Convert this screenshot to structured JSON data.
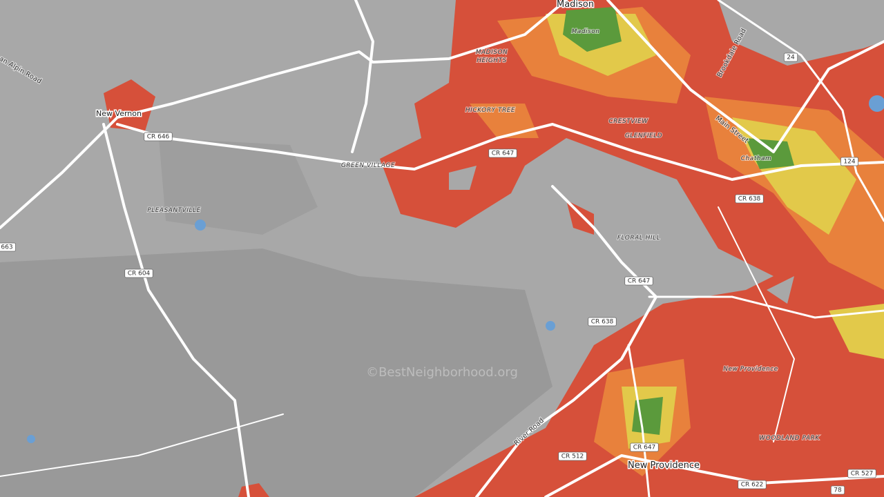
{
  "places": [
    "Madison",
    "Madison",
    "MADISON",
    "HEIGHTS",
    "HICKORY TREE",
    "CRESTVIEW",
    "GLENFIELD",
    "Chatham",
    "FLORAL HILL",
    "New Vernon",
    "GREEN VILLAGE",
    "PLEASANTVILLE",
    "New Providence",
    "WOODLAND PARK",
    "New Providence"
  ],
  "streets": [
    "Brookdale Road",
    "Main Street",
    "an Alpin Road",
    "River Road"
  ],
  "road_shields": [
    "24",
    "124",
    "CR 638",
    "CR 647",
    "CR 638",
    "CR 646",
    "CR 647",
    "663",
    "CR 604",
    "CR 647",
    "CR 512",
    "CR 622",
    "CR 527",
    "78"
  ],
  "watermark": "©BestNeighborhood.org"
}
